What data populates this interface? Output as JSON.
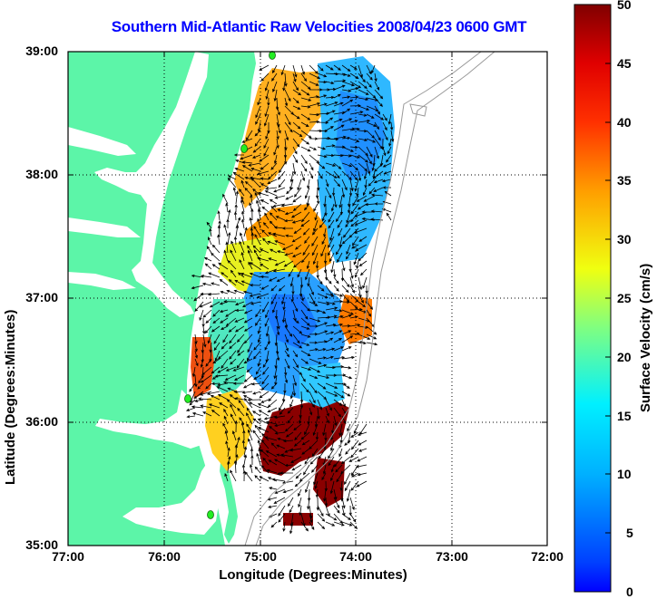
{
  "title": "Southern Mid-Atlantic Raw Velocities 2008/04/23 0600 GMT",
  "x_axis": {
    "label": "Longitude (Degrees:Minutes)",
    "ticks": [
      "77:00",
      "76:00",
      "75:00",
      "74:00",
      "73:00",
      "72:00"
    ]
  },
  "y_axis": {
    "label": "Latitude (Degrees:Minutes)",
    "ticks": [
      "39:00",
      "38:00",
      "37:00",
      "36:00",
      "35:00"
    ]
  },
  "colorbar": {
    "label": "Surface Velocity (cm/s)",
    "ticks": [
      "50",
      "45",
      "40",
      "35",
      "30",
      "25",
      "20",
      "15",
      "10",
      "5",
      "0"
    ],
    "range": [
      0,
      50
    ],
    "colormap": "jet"
  },
  "map": {
    "extent": {
      "lon": [
        -77,
        -72
      ],
      "lat": [
        35,
        39
      ]
    },
    "land_color": "#5cf5a8",
    "water_color": "#ffffff",
    "grid": "dotted",
    "station_color": "#22ee22"
  }
}
